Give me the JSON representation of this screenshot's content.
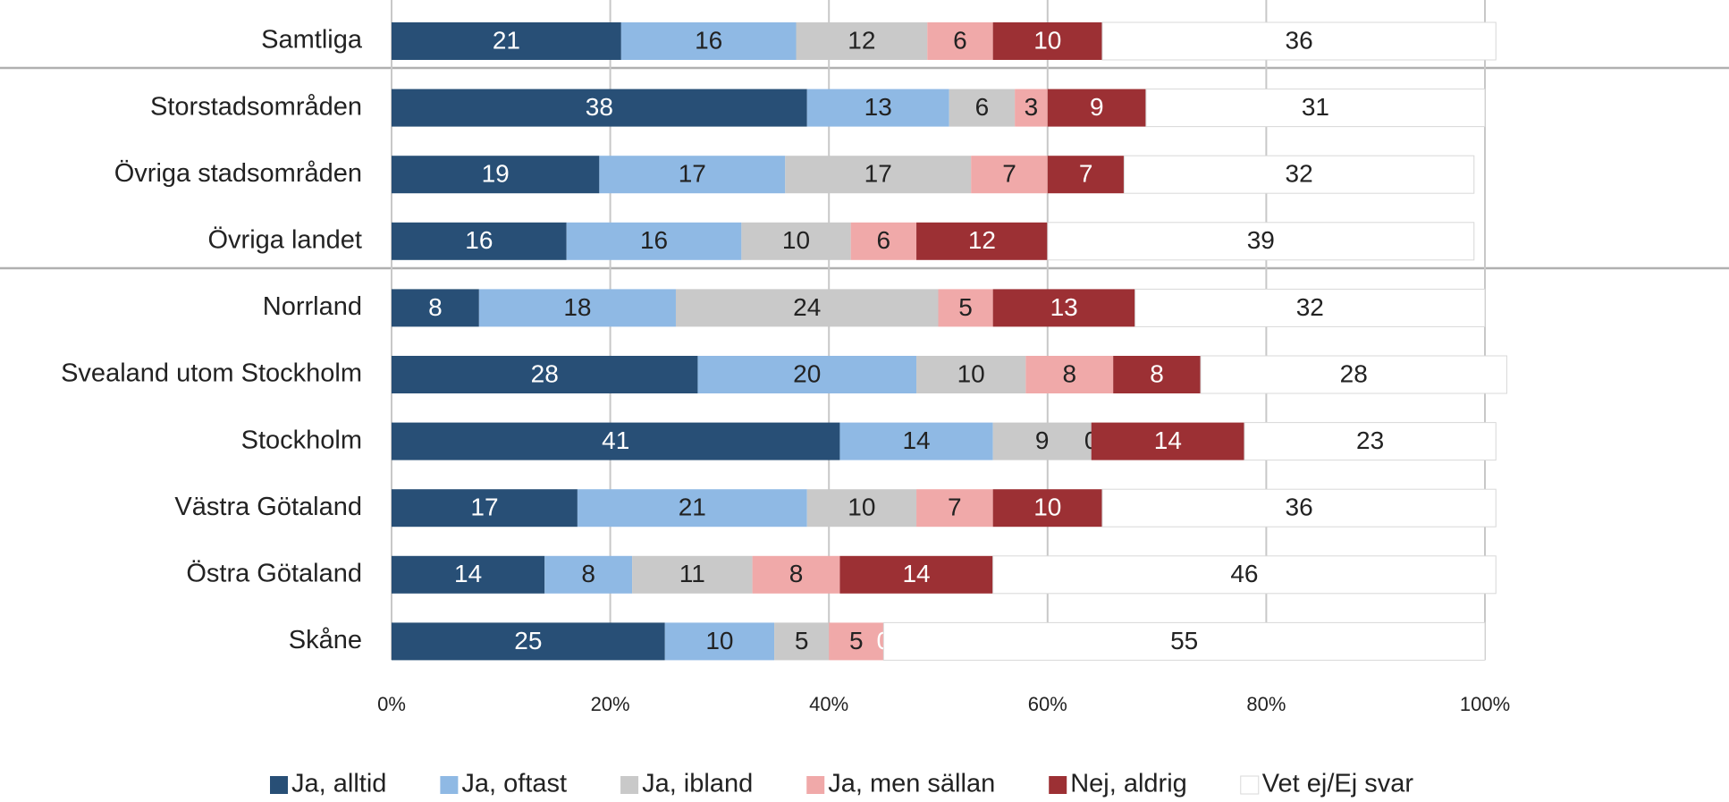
{
  "chart_data": {
    "type": "bar",
    "orientation": "horizontal",
    "stacked": true,
    "categories": [
      "Samtliga",
      "Storstadsområden",
      "Övriga stadsområden",
      "Övriga landet",
      "Norrland",
      "Svealand utom Stockholm",
      "Stockholm",
      "Västra Götaland",
      "Östra Götaland",
      "Skåne"
    ],
    "series": [
      {
        "name": "Ja, alltid",
        "color": "#284f76",
        "label_color": "#ffffff",
        "values": [
          21,
          38,
          19,
          16,
          8,
          28,
          41,
          17,
          14,
          25
        ]
      },
      {
        "name": "Ja, oftast",
        "color": "#8fb9e4",
        "label_color": "#222222",
        "values": [
          16,
          13,
          17,
          16,
          18,
          20,
          14,
          21,
          8,
          10
        ]
      },
      {
        "name": "Ja, ibland",
        "color": "#c9c9c9",
        "label_color": "#222222",
        "values": [
          12,
          6,
          17,
          10,
          24,
          10,
          9,
          10,
          11,
          5
        ]
      },
      {
        "name": "Ja, men sällan",
        "color": "#f0a9a9",
        "label_color": "#222222",
        "values": [
          6,
          3,
          7,
          6,
          5,
          8,
          0,
          7,
          8,
          5
        ]
      },
      {
        "name": "Nej, aldrig",
        "color": "#9c3034",
        "label_color": "#ffffff",
        "values": [
          10,
          9,
          7,
          12,
          13,
          8,
          14,
          10,
          14,
          0
        ]
      },
      {
        "name": "Vet ej/Ej svar",
        "color": "#ffffff",
        "label_color": "#222222",
        "values": [
          36,
          31,
          32,
          39,
          32,
          28,
          23,
          36,
          46,
          55
        ]
      }
    ],
    "xlim": [
      0,
      100
    ],
    "xticks": [
      {
        "value": 0,
        "label": "0%"
      },
      {
        "value": 20,
        "label": "20%"
      },
      {
        "value": 40,
        "label": "40%"
      },
      {
        "value": 60,
        "label": "60%"
      },
      {
        "value": 80,
        "label": "80%"
      },
      {
        "value": 100,
        "label": "100%"
      }
    ],
    "grid": true,
    "legend": "bottom"
  }
}
